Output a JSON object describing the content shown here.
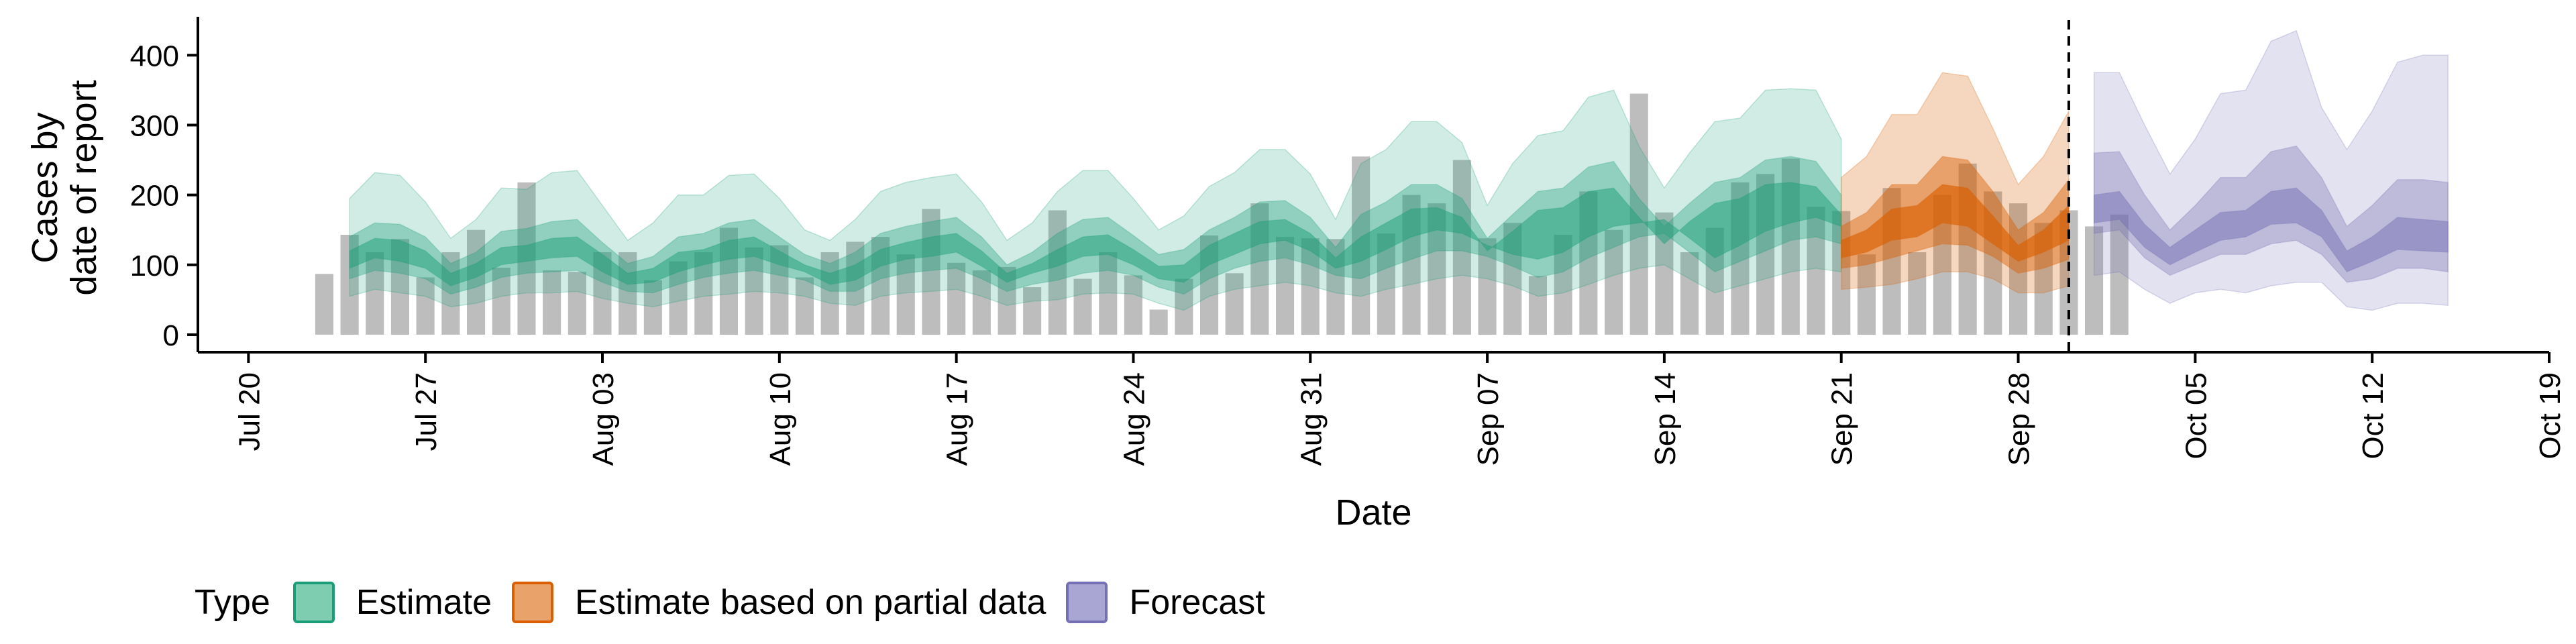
{
  "chart_data": {
    "type": "bar",
    "ylabel_lines": [
      "Cases by",
      "date of report"
    ],
    "xlabel": "Date",
    "ylim": [
      -25,
      455
    ],
    "yticks": [
      0,
      100,
      200,
      300,
      400
    ],
    "xlim": [
      "2020-07-18",
      "2020-10-19"
    ],
    "xticks": [
      {
        "date": "2020-07-20",
        "label": "Jul 20"
      },
      {
        "date": "2020-07-27",
        "label": "Jul 27"
      },
      {
        "date": "2020-08-03",
        "label": "Aug 03"
      },
      {
        "date": "2020-08-10",
        "label": "Aug 10"
      },
      {
        "date": "2020-08-17",
        "label": "Aug 17"
      },
      {
        "date": "2020-08-24",
        "label": "Aug 24"
      },
      {
        "date": "2020-08-31",
        "label": "Aug 31"
      },
      {
        "date": "2020-09-07",
        "label": "Sep 07"
      },
      {
        "date": "2020-09-14",
        "label": "Sep 14"
      },
      {
        "date": "2020-09-21",
        "label": "Sep 21"
      },
      {
        "date": "2020-09-28",
        "label": "Sep 28"
      },
      {
        "date": "2020-10-05",
        "label": "Oct 05"
      },
      {
        "date": "2020-10-12",
        "label": "Oct 12"
      },
      {
        "date": "2020-10-19",
        "label": "Oct 19"
      }
    ],
    "grid": false,
    "legend_position": "bottom-left",
    "vline_date": "2020-09-30",
    "bars": {
      "start_date": "2020-07-23",
      "color": "#bdbdbd",
      "values": [
        87,
        143,
        118,
        137,
        82,
        118,
        150,
        96,
        218,
        92,
        90,
        118,
        118,
        78,
        105,
        118,
        153,
        125,
        128,
        82,
        118,
        133,
        140,
        115,
        180,
        103,
        92,
        97,
        68,
        178,
        80,
        118,
        85,
        36,
        80,
        142,
        88,
        188,
        140,
        138,
        137,
        255,
        145,
        200,
        188,
        250,
        138,
        160,
        84,
        143,
        205,
        150,
        345,
        175,
        118,
        153,
        218,
        230,
        252,
        183,
        177,
        115,
        210,
        118,
        200,
        245,
        205,
        188,
        160,
        178,
        155,
        172
      ]
    },
    "types": [
      {
        "name": "Estimate",
        "fill": "#1b9e77",
        "border": "#1b9e77"
      },
      {
        "name": "Estimate based on partial data",
        "fill": "#d95f02",
        "border": "#d95f02"
      },
      {
        "name": "Forecast",
        "fill": "#7570b3",
        "border": "#7570b3"
      }
    ],
    "series": [
      {
        "type": "Estimate",
        "start_date": "2020-07-24",
        "band_opacity": [
          0.2,
          0.35,
          0.5
        ],
        "lo90": [
          55,
          65,
          60,
          55,
          40,
          45,
          55,
          60,
          60,
          62,
          52,
          45,
          40,
          48,
          55,
          58,
          62,
          60,
          55,
          45,
          42,
          55,
          60,
          62,
          65,
          55,
          42,
          48,
          50,
          58,
          60,
          58,
          45,
          35,
          55,
          65,
          70,
          75,
          70,
          60,
          55,
          65,
          72,
          80,
          85,
          80,
          70,
          55,
          60,
          72,
          85,
          95,
          100,
          80,
          60,
          70,
          80,
          90,
          95,
          90
        ],
        "hi90": [
          195,
          232,
          228,
          190,
          138,
          165,
          210,
          208,
          232,
          235,
          185,
          135,
          160,
          200,
          200,
          228,
          230,
          195,
          150,
          135,
          165,
          205,
          218,
          225,
          230,
          190,
          135,
          160,
          205,
          235,
          235,
          195,
          150,
          170,
          212,
          232,
          265,
          265,
          230,
          165,
          245,
          265,
          305,
          305,
          275,
          185,
          245,
          285,
          292,
          340,
          350,
          270,
          210,
          260,
          305,
          310,
          350,
          352,
          350,
          280
        ],
        "lo50": [
          80,
          92,
          88,
          80,
          58,
          68,
          82,
          88,
          90,
          92,
          75,
          62,
          60,
          72,
          82,
          88,
          92,
          85,
          78,
          62,
          62,
          80,
          88,
          92,
          95,
          80,
          62,
          72,
          78,
          88,
          92,
          85,
          68,
          58,
          80,
          95,
          105,
          110,
          100,
          85,
          80,
          95,
          108,
          120,
          120,
          112,
          98,
          82,
          90,
          110,
          125,
          140,
          145,
          118,
          90,
          105,
          120,
          135,
          140,
          130
        ],
        "hi50": [
          140,
          160,
          158,
          140,
          102,
          118,
          148,
          152,
          162,
          165,
          132,
          102,
          112,
          140,
          145,
          160,
          165,
          140,
          115,
          102,
          118,
          145,
          155,
          162,
          168,
          140,
          100,
          118,
          145,
          165,
          168,
          142,
          115,
          122,
          150,
          168,
          190,
          192,
          168,
          125,
          172,
          190,
          215,
          215,
          195,
          138,
          172,
          205,
          210,
          240,
          248,
          195,
          155,
          188,
          218,
          225,
          250,
          255,
          248,
          200
        ],
        "lo20": [
          95,
          110,
          105,
          95,
          70,
          82,
          100,
          105,
          110,
          112,
          90,
          72,
          75,
          90,
          100,
          108,
          112,
          100,
          90,
          72,
          78,
          98,
          108,
          112,
          118,
          98,
          75,
          88,
          98,
          112,
          115,
          100,
          80,
          75,
          100,
          115,
          130,
          135,
          120,
          95,
          105,
          122,
          140,
          150,
          145,
          128,
          115,
          108,
          118,
          140,
          155,
          160,
          165,
          138,
          110,
          128,
          148,
          160,
          168,
          155
        ],
        "hi20": [
          120,
          138,
          135,
          120,
          88,
          102,
          125,
          128,
          138,
          140,
          115,
          88,
          95,
          118,
          122,
          135,
          140,
          120,
          100,
          88,
          100,
          122,
          132,
          140,
          145,
          120,
          88,
          102,
          122,
          140,
          143,
          122,
          98,
          100,
          128,
          145,
          162,
          165,
          145,
          110,
          140,
          160,
          180,
          182,
          168,
          120,
          148,
          178,
          182,
          205,
          210,
          168,
          130,
          162,
          188,
          195,
          215,
          218,
          212,
          172
        ]
      },
      {
        "type": "Estimate based on partial data",
        "start_date": "2020-09-21",
        "band_opacity": [
          0.25,
          0.45,
          0.65
        ],
        "lo90": [
          65,
          68,
          72,
          80,
          90,
          90,
          80,
          60,
          60,
          70
        ],
        "hi90": [
          225,
          255,
          315,
          315,
          375,
          370,
          295,
          215,
          255,
          320
        ],
        "lo50": [
          95,
          100,
          110,
          120,
          130,
          128,
          112,
          88,
          95,
          108
        ],
        "hi50": [
          155,
          175,
          215,
          215,
          255,
          250,
          205,
          150,
          175,
          222
        ],
        "lo20": [
          110,
          118,
          135,
          140,
          160,
          155,
          130,
          105,
          118,
          135
        ],
        "hi20": [
          135,
          150,
          180,
          185,
          215,
          210,
          170,
          128,
          150,
          185
        ]
      },
      {
        "type": "Forecast",
        "start_date": "2020-10-01",
        "band_opacity": [
          0.2,
          0.35,
          0.5
        ],
        "lo90": [
          85,
          90,
          65,
          45,
          60,
          65,
          60,
          70,
          75,
          75,
          40,
          35,
          45,
          45,
          42
        ],
        "hi90": [
          375,
          375,
          300,
          230,
          280,
          345,
          350,
          420,
          435,
          325,
          265,
          320,
          390,
          400,
          400
        ],
        "lo50": [
          145,
          150,
          110,
          85,
          100,
          115,
          115,
          130,
          135,
          115,
          75,
          80,
          95,
          95,
          90
        ],
        "hi50": [
          260,
          262,
          200,
          150,
          185,
          225,
          225,
          262,
          270,
          225,
          155,
          185,
          222,
          222,
          218
        ],
        "lo20": [
          160,
          165,
          125,
          100,
          118,
          135,
          140,
          158,
          160,
          140,
          90,
          105,
          122,
          120,
          118
        ],
        "hi20": [
          200,
          205,
          158,
          125,
          150,
          175,
          178,
          205,
          210,
          178,
          120,
          140,
          168,
          165,
          162
        ]
      }
    ]
  },
  "legend": {
    "title": "Type",
    "items": [
      {
        "label": "Estimate",
        "fill": "#7fcdb0",
        "border": "#1b9e77",
        "name": "legend-item-estimate"
      },
      {
        "label": "Estimate based on partial data",
        "fill": "#e9a36a",
        "border": "#d95f02",
        "name": "legend-item-partial"
      },
      {
        "label": "Forecast",
        "fill": "#aaa6d4",
        "border": "#7570b3",
        "name": "legend-item-forecast"
      }
    ]
  }
}
